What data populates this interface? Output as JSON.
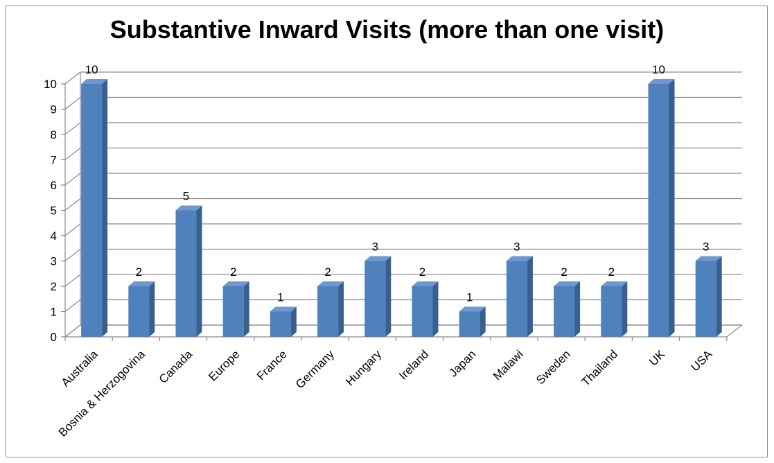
{
  "chart_data": {
    "type": "bar",
    "title": "Substantive Inward Visits (more than one visit)",
    "categories": [
      "Australia",
      "Bosnia & Herzogovina",
      "Canada",
      "Europe",
      "France",
      "Germany",
      "Hungary",
      "Ireland",
      "Japan",
      "Malawi",
      "Sweden",
      "Thailand",
      "UK",
      "USA"
    ],
    "values": [
      10,
      2,
      5,
      2,
      1,
      2,
      3,
      2,
      1,
      3,
      2,
      2,
      10,
      3
    ],
    "data_labels": [
      "10",
      "2",
      "5",
      "2",
      "1",
      "2",
      "3",
      "2",
      "1",
      "3",
      "2",
      "2",
      "10",
      "3"
    ],
    "y_ticks": [
      "0",
      "1",
      "2",
      "3",
      "4",
      "5",
      "6",
      "7",
      "8",
      "9",
      "10"
    ],
    "ylim": [
      0,
      10
    ],
    "grid": true,
    "legend": "none",
    "bar_style": "3d",
    "colors": {
      "bar_front": "#4f81bd",
      "bar_top": "#6e98cf",
      "bar_side": "#375f8f",
      "grid": "#8a8a8a"
    }
  }
}
